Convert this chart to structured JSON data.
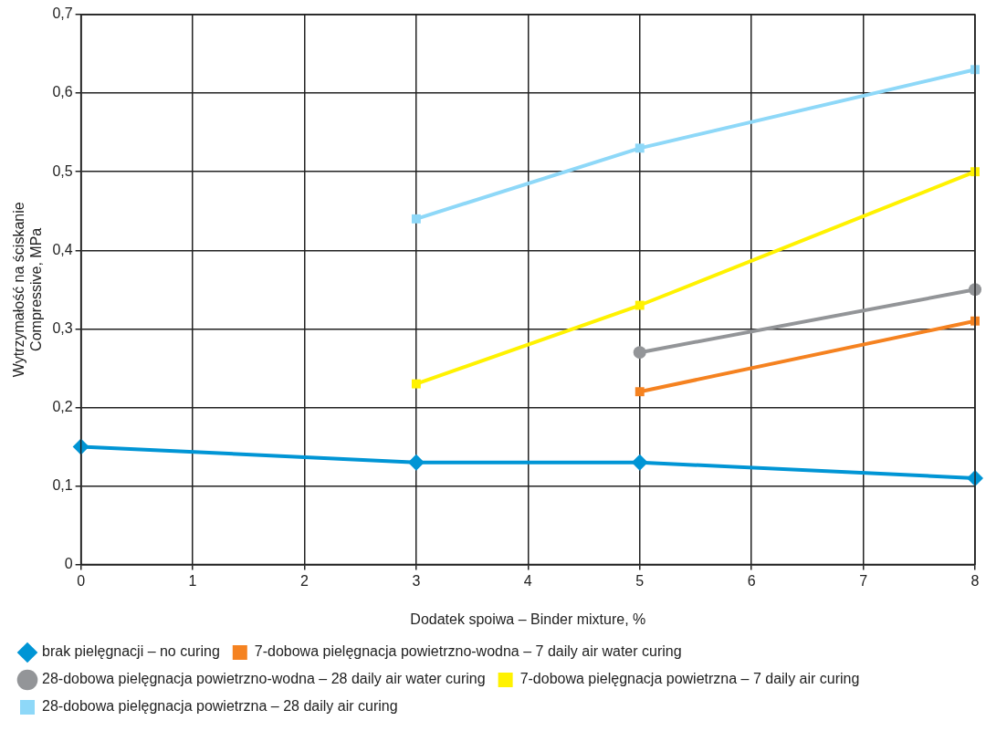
{
  "chart_data": {
    "type": "line",
    "xlabel": "Dodatek spoiwa – Binder mixture, %",
    "ylabel": "Wytrzymałość na ściskanie\nCompressive, MPa",
    "xlim": [
      0,
      8
    ],
    "xticks": [
      0,
      1,
      2,
      3,
      4,
      5,
      6,
      7,
      8
    ],
    "ylim": [
      0,
      0.7
    ],
    "yticks": [
      0,
      {
        "value": 0.1,
        "label": "0,1"
      },
      {
        "value": 0.2,
        "label": "0,2"
      },
      {
        "value": 0.3,
        "label": "0,3"
      },
      {
        "value": 0.4,
        "label": "0,4"
      },
      {
        "value": 0.5,
        "label": "0,5"
      },
      {
        "value": 0.6,
        "label": "0,6"
      },
      {
        "value": 0.7,
        "label": "0,7"
      }
    ],
    "grid": true,
    "legend": "bottom",
    "line_style": "solid",
    "series": [
      {
        "name": "brak pielęgnacji – no curing",
        "color": "#0095d5",
        "marker": "diamond",
        "x": [
          0,
          3,
          5,
          8
        ],
        "values": [
          0.15,
          0.13,
          0.13,
          0.11
        ]
      },
      {
        "name": "7-dobowa pielęgnacja powietrzno-wodna – 7 daily air water curing",
        "color": "#f58220",
        "marker": "square",
        "x": [
          5,
          8
        ],
        "values": [
          0.22,
          0.31
        ]
      },
      {
        "name": "28-dobowa pielęgnacja powietrzno-wodna – 28 daily air water curing",
        "color": "#939598",
        "marker": "circle",
        "x": [
          5,
          8
        ],
        "values": [
          0.27,
          0.35
        ]
      },
      {
        "name": "7-dobowa pielęgnacja powietrzna – 7 daily air curing",
        "color": "#fff200",
        "marker": "square",
        "x": [
          3,
          5,
          8
        ],
        "values": [
          0.23,
          0.33,
          0.5
        ]
      },
      {
        "name": "28-dobowa pielęgnacja powietrzna – 28 daily air curing",
        "color": "#8ed8f8",
        "marker": "square",
        "x": [
          3,
          5,
          8
        ],
        "values": [
          0.44,
          0.53,
          0.63
        ]
      }
    ]
  }
}
